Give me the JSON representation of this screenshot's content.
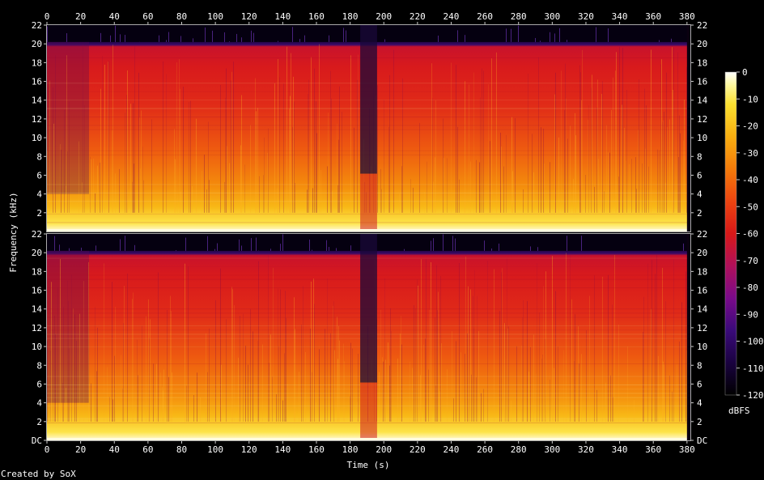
{
  "chart_data": {
    "type": "heatmap",
    "channels": 2,
    "xlabel": "Time (s)",
    "ylabel": "Frequency (kHz)",
    "xlim": [
      0,
      382
    ],
    "ylim": [
      0,
      22
    ],
    "x_ticks": [
      0,
      20,
      40,
      60,
      80,
      100,
      120,
      140,
      160,
      180,
      200,
      220,
      240,
      260,
      280,
      300,
      320,
      340,
      360,
      380
    ],
    "y_ticks_top": [
      "2",
      "4",
      "6",
      "8",
      "10",
      "12",
      "14",
      "16",
      "18",
      "20",
      "22"
    ],
    "y_ticks_bottom": [
      "DC",
      "2",
      "4",
      "6",
      "8",
      "10",
      "12",
      "14",
      "16",
      "18",
      "20",
      "22"
    ],
    "colorbar": {
      "label": "dBFS",
      "range": [
        -120,
        0
      ],
      "ticks": [
        "0",
        "-10",
        "-20",
        "-30",
        "-40",
        "-50",
        "-60",
        "-70",
        "-80",
        "-90",
        "-100",
        "-110",
        "-120"
      ],
      "colors": [
        "#000000",
        "#1a0240",
        "#3a0a7a",
        "#7a0a8a",
        "#b0105a",
        "#d81818",
        "#ec4410",
        "#f47b0a",
        "#f8ae10",
        "#fbe030",
        "#fdf8a0",
        "#ffffff"
      ]
    },
    "cutoff_khz": 20,
    "quiet_segments_s": [
      [
        186,
        196
      ]
    ],
    "intro_dimmer_s": [
      [
        0,
        25
      ]
    ],
    "credit": "Created by SoX"
  }
}
